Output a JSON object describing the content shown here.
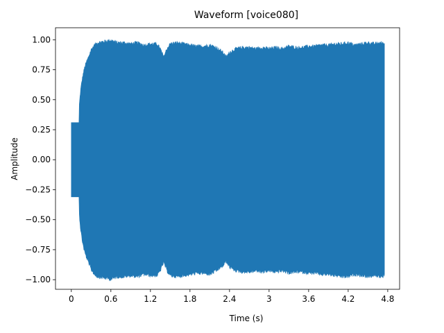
{
  "chart_data": {
    "type": "area",
    "title": "Waveform [voice080]",
    "xlabel": "Time (s)",
    "ylabel": "Amplitude",
    "xlim": [
      -0.24,
      4.98
    ],
    "ylim": [
      -1.08,
      1.1
    ],
    "x_ticks": [
      {
        "value": 0,
        "label": "0"
      },
      {
        "value": 0.6,
        "label": "0.6"
      },
      {
        "value": 1.2,
        "label": "1.2"
      },
      {
        "value": 1.8,
        "label": "1.8"
      },
      {
        "value": 2.4,
        "label": "2.4"
      },
      {
        "value": 3.0,
        "label": "3"
      },
      {
        "value": 3.6,
        "label": "3.6"
      },
      {
        "value": 4.2,
        "label": "4.2"
      },
      {
        "value": 4.8,
        "label": "4.8"
      }
    ],
    "y_ticks": [
      {
        "value": 1.0,
        "label": "1.00"
      },
      {
        "value": 0.75,
        "label": "0.75"
      },
      {
        "value": 0.5,
        "label": "0.50"
      },
      {
        "value": 0.25,
        "label": "0.25"
      },
      {
        "value": 0.0,
        "label": "0.00"
      },
      {
        "value": -0.25,
        "label": "−0.25"
      },
      {
        "value": -0.5,
        "label": "−0.50"
      },
      {
        "value": -0.75,
        "label": "−0.75"
      },
      {
        "value": -1.0,
        "label": "−1.00"
      }
    ],
    "grid": false,
    "series": [
      {
        "color": "#1f77b4",
        "envelope": {
          "x": [
            0.0,
            0.12,
            0.121,
            0.14,
            0.16,
            0.18,
            0.2,
            0.23,
            0.26,
            0.3,
            0.35,
            0.4,
            0.5,
            0.6,
            0.7,
            0.8,
            0.9,
            1.0,
            1.1,
            1.2,
            1.3,
            1.35,
            1.4,
            1.45,
            1.5,
            1.6,
            1.7,
            1.8,
            1.9,
            2.0,
            2.1,
            2.2,
            2.3,
            2.35,
            2.4,
            2.5,
            2.6,
            2.7,
            2.8,
            2.9,
            3.0,
            3.1,
            3.2,
            3.3,
            3.4,
            3.5,
            3.6,
            3.7,
            3.8,
            3.9,
            4.0,
            4.1,
            4.2,
            4.3,
            4.4,
            4.5,
            4.6,
            4.7,
            4.75
          ],
          "upper": [
            0.31,
            0.31,
            0.44,
            0.56,
            0.64,
            0.7,
            0.75,
            0.8,
            0.84,
            0.9,
            0.94,
            0.96,
            0.97,
            0.98,
            0.96,
            0.96,
            0.95,
            0.96,
            0.94,
            0.95,
            0.95,
            0.91,
            0.84,
            0.91,
            0.95,
            0.96,
            0.95,
            0.94,
            0.93,
            0.93,
            0.94,
            0.92,
            0.88,
            0.84,
            0.88,
            0.91,
            0.92,
            0.92,
            0.91,
            0.92,
            0.91,
            0.92,
            0.91,
            0.93,
            0.92,
            0.92,
            0.93,
            0.93,
            0.94,
            0.94,
            0.95,
            0.95,
            0.96,
            0.94,
            0.95,
            0.96,
            0.95,
            0.96,
            0.95
          ],
          "lower": [
            -0.31,
            -0.31,
            -0.44,
            -0.56,
            -0.64,
            -0.7,
            -0.75,
            -0.8,
            -0.84,
            -0.9,
            -0.94,
            -0.96,
            -0.97,
            -0.98,
            -0.96,
            -0.96,
            -0.95,
            -0.96,
            -0.94,
            -0.95,
            -0.95,
            -0.91,
            -0.84,
            -0.91,
            -0.95,
            -0.96,
            -0.95,
            -0.94,
            -0.93,
            -0.93,
            -0.94,
            -0.91,
            -0.87,
            -0.83,
            -0.88,
            -0.91,
            -0.92,
            -0.92,
            -0.91,
            -0.92,
            -0.91,
            -0.92,
            -0.91,
            -0.93,
            -0.92,
            -0.92,
            -0.93,
            -0.93,
            -0.94,
            -0.94,
            -0.95,
            -0.96,
            -0.96,
            -0.94,
            -0.95,
            -0.96,
            -0.95,
            -0.96,
            -0.95
          ]
        }
      }
    ]
  }
}
